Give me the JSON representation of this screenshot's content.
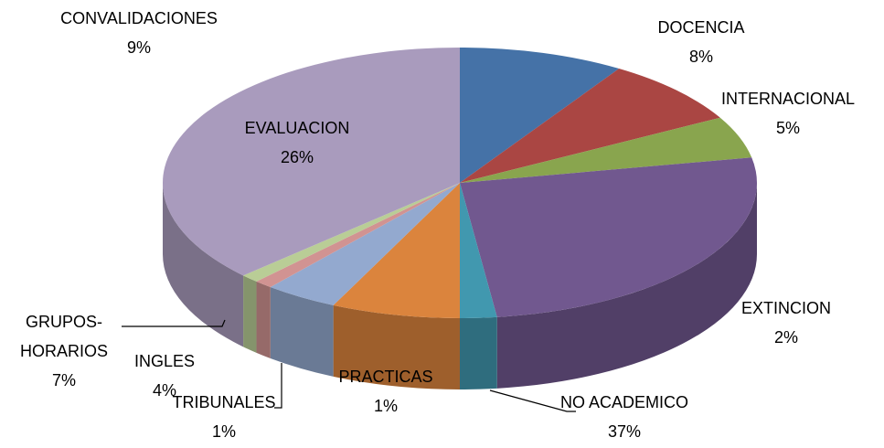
{
  "chart_data": {
    "type": "pie3d",
    "categories": [
      "CONVALIDACIONES",
      "DOCENCIA",
      "INTERNACIONAL",
      "EVALUACION",
      "EXTINCION",
      "GRUPOS-HORARIOS",
      "INGLES",
      "TRIBUNALES",
      "PRACTICAS",
      "NO ACADEMICO"
    ],
    "values": [
      9,
      8,
      5,
      26,
      2,
      7,
      4,
      1,
      1,
      37
    ],
    "value_labels": [
      "9%",
      "8%",
      "5%",
      "26%",
      "2%",
      "7%",
      "4%",
      "1%",
      "1%",
      "37%"
    ],
    "colors": [
      "#4572a7",
      "#aa4643",
      "#89a54e",
      "#71588f",
      "#4198af",
      "#db843d",
      "#93a9cf",
      "#d19392",
      "#b9cd96",
      "#a99bbd"
    ]
  }
}
